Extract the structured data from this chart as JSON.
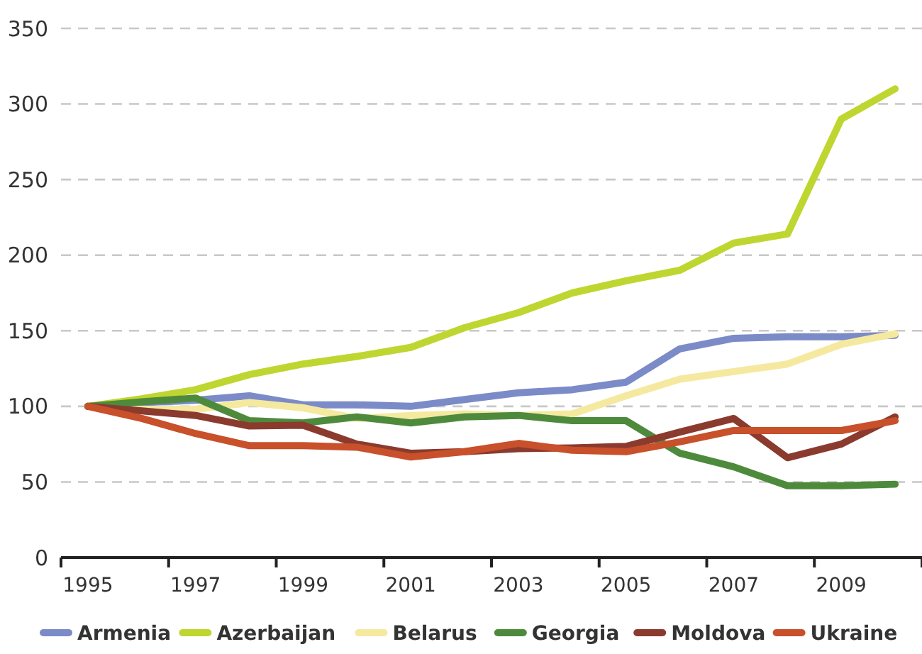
{
  "chart_data": {
    "type": "line",
    "categories": [
      "1995",
      null,
      "1997",
      null,
      "1999",
      null,
      "2001",
      null,
      "2003",
      null,
      "2005",
      null,
      "2007",
      null,
      "2009",
      null
    ],
    "ylim": [
      0,
      350
    ],
    "yticks": [
      0,
      50,
      100,
      150,
      200,
      250,
      300,
      350
    ],
    "grid": "y",
    "legend": "bottom",
    "marker": "none",
    "line_style": "solid",
    "series": [
      {
        "name": "Armenia",
        "color": "#7b8bc8",
        "values": [
          100,
          102.5,
          104,
          107,
          101,
          101,
          100,
          104.5,
          109,
          111,
          116,
          138,
          145,
          146,
          146,
          147
        ]
      },
      {
        "name": "Azerbaijan",
        "color": "#bed62f",
        "values": [
          100,
          105,
          111,
          121,
          128,
          133,
          139,
          152,
          162,
          175,
          183,
          190,
          208,
          214,
          290,
          310
        ]
      },
      {
        "name": "Belarus",
        "color": "#f5e9a0",
        "values": [
          100,
          98,
          98,
          102.5,
          99,
          92,
          94,
          95,
          94,
          95,
          107,
          118,
          123,
          128,
          141,
          148
        ]
      },
      {
        "name": "Georgia",
        "color": "#4e8a3c",
        "values": [
          100,
          103,
          105.5,
          90.5,
          89,
          93,
          89,
          93,
          94,
          90.5,
          90.5,
          69,
          60,
          47.5,
          47.5,
          48.5
        ]
      },
      {
        "name": "Moldova",
        "color": "#8b3a2e",
        "values": [
          100,
          97,
          94,
          87,
          87.5,
          75,
          69,
          70,
          72,
          72.5,
          73.5,
          83,
          92,
          66,
          75,
          93
        ]
      },
      {
        "name": "Ukraine",
        "color": "#c8502a",
        "values": [
          100,
          92,
          82,
          74,
          74,
          73,
          66.5,
          70,
          75.5,
          71,
          70,
          76.5,
          84,
          84,
          84,
          90.5
        ]
      }
    ]
  }
}
